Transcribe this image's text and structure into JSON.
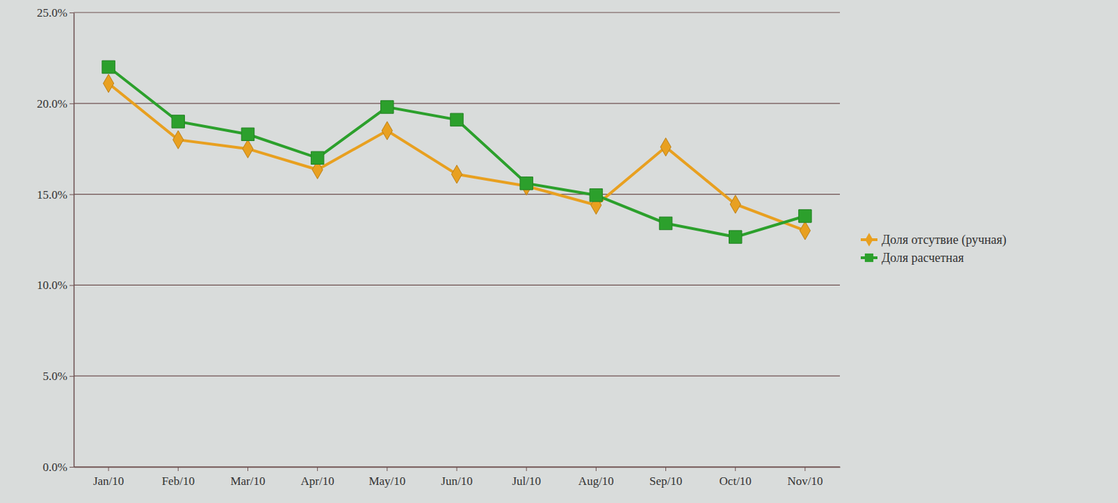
{
  "chart_data": {
    "type": "line",
    "categories": [
      "Jan/10",
      "Feb/10",
      "Mar/10",
      "Apr/10",
      "May/10",
      "Jun/10",
      "Jul/10",
      "Aug/10",
      "Sep/10",
      "Oct/10",
      "Nov/10"
    ],
    "series": [
      {
        "name": "Доля отсутвие (ручная)",
        "color": "#e8a020",
        "marker": "diamond",
        "values": [
          21.1,
          18.0,
          17.5,
          16.35,
          18.5,
          16.1,
          15.45,
          14.4,
          17.6,
          14.45,
          13.0
        ]
      },
      {
        "name": "Доля расчетная",
        "color": "#2ca02c",
        "marker": "square",
        "values": [
          22.0,
          19.0,
          18.3,
          17.0,
          19.8,
          19.1,
          15.6,
          14.95,
          13.4,
          12.65,
          13.8
        ]
      }
    ],
    "ylim": [
      0,
      25
    ],
    "yticks": [
      {
        "value": 0,
        "label": "0.0%"
      },
      {
        "value": 5,
        "label": "5.0%"
      },
      {
        "value": 10,
        "label": "10.0%"
      },
      {
        "value": 15,
        "label": "15.0%"
      },
      {
        "value": 20,
        "label": "20.0%"
      },
      {
        "value": 25,
        "label": "25.0%"
      }
    ],
    "grid": true,
    "legend": "right"
  }
}
